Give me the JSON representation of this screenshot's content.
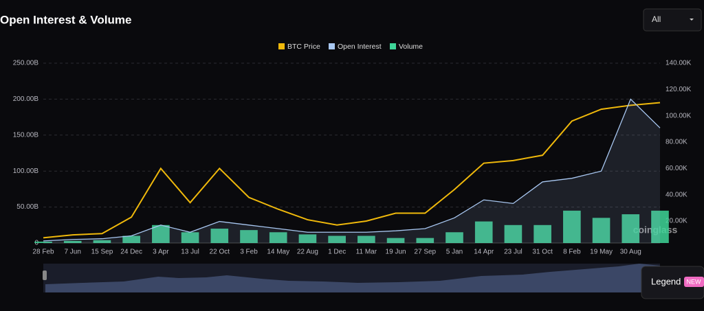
{
  "chart_data": {
    "type": "line",
    "title": "Open Interest & Volume",
    "range_selector": "All",
    "legend_button": "Legend",
    "legend_badge": "NEW",
    "watermark": "coinglass",
    "categories": [
      "28 Feb",
      "7 Jun",
      "15 Sep",
      "24 Dec",
      "3 Apr",
      "13 Jul",
      "22 Oct",
      "3 Feb",
      "14 May",
      "22 Aug",
      "1 Dec",
      "11 Mar",
      "19 Jun",
      "27 Sep",
      "5 Jan",
      "14 Apr",
      "23 Jul",
      "31 Oct",
      "8 Feb",
      "19 May",
      "30 Aug",
      null
    ],
    "series": [
      {
        "name": "BTC Price",
        "color": "#f0b90b",
        "axis": "y2",
        "values": [
          7300,
          9500,
          10500,
          23000,
          60000,
          34000,
          60000,
          38000,
          29000,
          21000,
          17000,
          20000,
          26000,
          26000,
          44000,
          64000,
          66000,
          70000,
          96000,
          105000,
          108000,
          110000
        ]
      },
      {
        "name": "Open Interest",
        "color": "#a9c8f2",
        "values": [
          3,
          5,
          6,
          10,
          25,
          15,
          30,
          25,
          20,
          15,
          15,
          15,
          17,
          20,
          35,
          60,
          55,
          85,
          90,
          100,
          200,
          160
        ]
      },
      {
        "name": "Volume",
        "color": "#3ed598",
        "type": "bar",
        "values": [
          2,
          3,
          4,
          10,
          25,
          15,
          20,
          18,
          15,
          12,
          10,
          10,
          7,
          7,
          15,
          30,
          25,
          25,
          45,
          35,
          40,
          45
        ]
      }
    ],
    "ylim": [
      0,
      250
    ],
    "yticks": [
      0,
      {
        "value": 50,
        "label": "50.00B"
      },
      {
        "value": 100,
        "label": "100.00B"
      },
      {
        "value": 150,
        "label": "150.00B"
      },
      {
        "value": 200,
        "label": "200.00B"
      },
      {
        "value": 250,
        "label": "250.00B"
      }
    ],
    "y2lim": [
      3300,
      140000
    ],
    "y2ticks": [
      {
        "value": 20000,
        "label": "20.00K"
      },
      {
        "value": 40000,
        "label": "40.00K"
      },
      {
        "value": 60000,
        "label": "60.00K"
      },
      {
        "value": 80000,
        "label": "80.00K"
      },
      {
        "value": 100000,
        "label": "100.00K"
      },
      {
        "value": 120000,
        "label": "120.00K"
      },
      {
        "value": 140000,
        "label": "140.00K"
      }
    ],
    "grid": true,
    "legend": "top"
  }
}
